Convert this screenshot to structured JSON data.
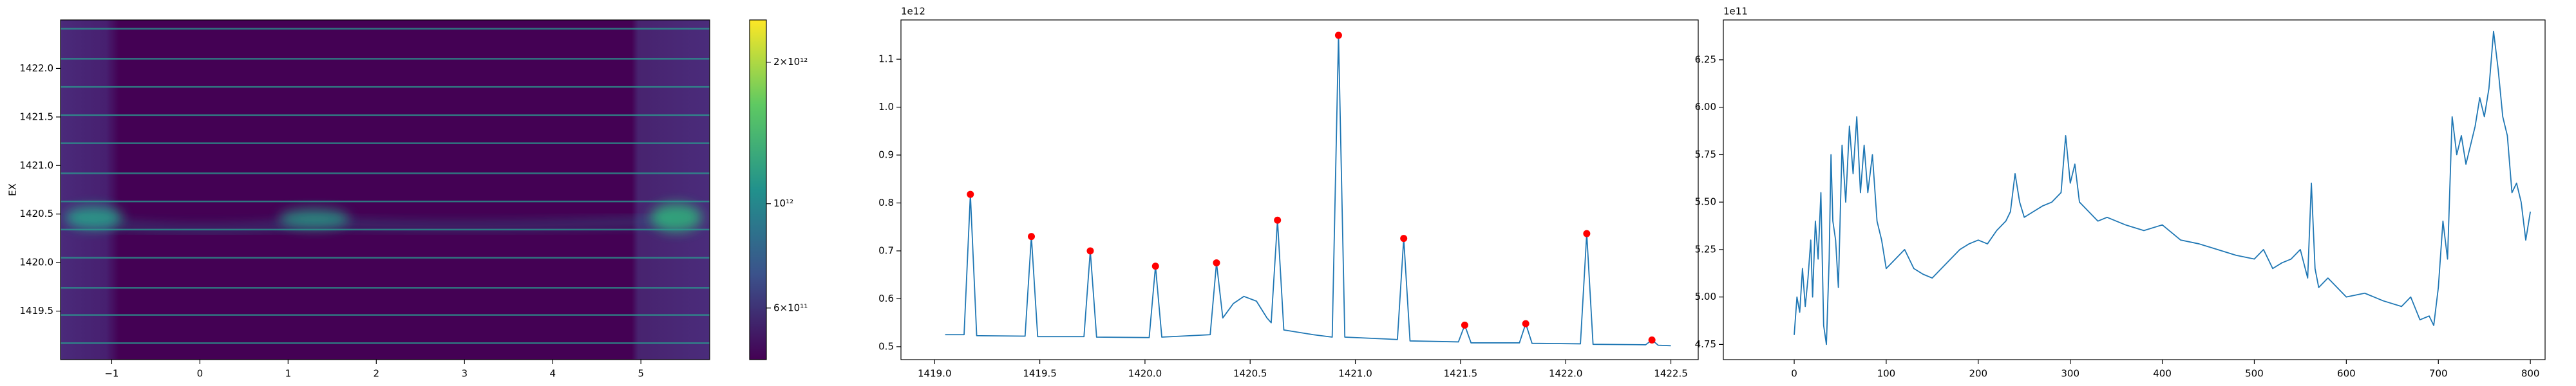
{
  "chart_data": [
    {
      "type": "heatmap",
      "ylabel": "EX",
      "xlim": [
        -1.58,
        5.78
      ],
      "ylim": [
        1419.0,
        1422.5
      ],
      "xticks": [
        {
          "value": -1,
          "label": "−1"
        },
        0,
        1,
        2,
        3,
        4,
        5
      ],
      "yticks": [
        {
          "value": 1419.5,
          "label": "1419.5"
        },
        {
          "value": 1420,
          "label": "1420.0"
        },
        1420.5,
        {
          "value": 1421,
          "label": "1421.0"
        },
        1421.5,
        {
          "value": 1422,
          "label": "1422.0"
        }
      ],
      "colorbar": {
        "scale": "log",
        "clim": [
          466000000000,
          2460000000000
        ],
        "ticks": [
          {
            "value": 2000000000000,
            "label": "2×10¹²"
          },
          {
            "value": 1000000000000,
            "label": "10¹²"
          },
          {
            "value": 600000000000,
            "label": "6×10¹¹"
          }
        ]
      }
    },
    {
      "type": "line",
      "color": "#1f77b4",
      "y_offset_label": "1e12",
      "xlim": [
        1418.84,
        1422.63
      ],
      "ylim": [
        0.473,
        1.182
      ],
      "xticks": [
        {
          "value": 1419,
          "label": "1419.0"
        },
        1419.5,
        {
          "value": 1420,
          "label": "1420.0"
        },
        1420.5,
        {
          "value": 1421,
          "label": "1421.0"
        },
        1421.5,
        {
          "value": 1422,
          "label": "1422.0"
        },
        1422.5
      ],
      "yticks": [
        0.5,
        0.6,
        0.7,
        0.8,
        0.9,
        {
          "value": 1,
          "label": "1.0"
        },
        1.1
      ],
      "x": [
        1419.05,
        1419.14,
        1419.17,
        1419.2,
        1419.43,
        1419.46,
        1419.49,
        1419.71,
        1419.74,
        1419.77,
        1420.02,
        1420.05,
        1420.08,
        1420.31,
        1420.34,
        1420.37,
        1420.42,
        1420.47,
        1420.53,
        1420.58,
        1420.6,
        1420.63,
        1420.66,
        1420.8,
        1420.89,
        1420.92,
        1420.95,
        1421.2,
        1421.23,
        1421.26,
        1421.49,
        1421.52,
        1421.55,
        1421.78,
        1421.81,
        1421.84,
        1422.07,
        1422.1,
        1422.13,
        1422.38,
        1422.41,
        1422.44,
        1422.5
      ],
      "values": [
        0.525,
        0.525,
        0.818,
        0.523,
        0.522,
        0.73,
        0.521,
        0.521,
        0.7,
        0.52,
        0.519,
        0.668,
        0.52,
        0.525,
        0.675,
        0.56,
        0.59,
        0.605,
        0.595,
        0.56,
        0.55,
        0.764,
        0.535,
        0.525,
        0.52,
        1.15,
        0.52,
        0.515,
        0.726,
        0.512,
        0.51,
        0.545,
        0.508,
        0.508,
        0.548,
        0.507,
        0.506,
        0.736,
        0.505,
        0.504,
        0.514,
        0.503,
        0.502
      ],
      "peaks": {
        "color": "#ff0000",
        "x": [
          1419.17,
          1419.46,
          1419.74,
          1420.05,
          1420.34,
          1420.63,
          1420.92,
          1421.23,
          1421.52,
          1421.81,
          1422.1,
          1422.41
        ],
        "values": [
          0.818,
          0.73,
          0.7,
          0.668,
          0.675,
          0.764,
          1.15,
          0.726,
          0.545,
          0.548,
          0.736,
          0.514
        ]
      }
    },
    {
      "type": "line",
      "color": "#1f77b4",
      "y_offset_label": "1e11",
      "xlim": [
        -77,
        816
      ],
      "ylim": [
        4.67,
        6.46
      ],
      "xticks": [
        0,
        100,
        200,
        300,
        400,
        500,
        600,
        700,
        800
      ],
      "yticks": [
        4.75,
        {
          "value": 5,
          "label": "5.00"
        },
        5.25,
        {
          "value": 5.5,
          "label": "5.50"
        },
        5.75,
        {
          "value": 6,
          "label": "6.00"
        },
        6.25
      ],
      "x": [
        0,
        3,
        6,
        9,
        12,
        15,
        18,
        20,
        23,
        26,
        29,
        32,
        35,
        38,
        40,
        42,
        45,
        48,
        52,
        56,
        60,
        64,
        68,
        72,
        76,
        80,
        85,
        90,
        95,
        100,
        110,
        120,
        130,
        140,
        150,
        160,
        170,
        180,
        190,
        200,
        210,
        220,
        230,
        235,
        240,
        245,
        250,
        260,
        270,
        280,
        290,
        295,
        300,
        305,
        310,
        320,
        330,
        340,
        350,
        360,
        380,
        400,
        420,
        440,
        460,
        480,
        500,
        510,
        520,
        530,
        540,
        550,
        558,
        562,
        566,
        570,
        580,
        600,
        620,
        640,
        660,
        670,
        680,
        690,
        695,
        700,
        705,
        710,
        715,
        720,
        725,
        730,
        740,
        745,
        750,
        755,
        760,
        765,
        770,
        775,
        780,
        785,
        790,
        795,
        800
      ],
      "values": [
        4.8,
        5.0,
        4.92,
        5.15,
        4.95,
        5.1,
        5.3,
        5.0,
        5.4,
        5.2,
        5.55,
        4.85,
        4.75,
        5.2,
        5.75,
        5.4,
        5.3,
        5.05,
        5.8,
        5.5,
        5.9,
        5.65,
        5.95,
        5.55,
        5.8,
        5.55,
        5.75,
        5.4,
        5.3,
        5.15,
        5.2,
        5.25,
        5.15,
        5.12,
        5.1,
        5.15,
        5.2,
        5.25,
        5.28,
        5.3,
        5.28,
        5.35,
        5.4,
        5.45,
        5.65,
        5.5,
        5.42,
        5.45,
        5.48,
        5.5,
        5.55,
        5.85,
        5.6,
        5.7,
        5.5,
        5.45,
        5.4,
        5.42,
        5.4,
        5.38,
        5.35,
        5.38,
        5.3,
        5.28,
        5.25,
        5.22,
        5.2,
        5.25,
        5.15,
        5.18,
        5.2,
        5.25,
        5.1,
        5.6,
        5.15,
        5.05,
        5.1,
        5.0,
        5.02,
        4.98,
        4.95,
        5.0,
        4.88,
        4.9,
        4.85,
        5.05,
        5.4,
        5.2,
        5.95,
        5.75,
        5.85,
        5.7,
        5.9,
        6.05,
        5.95,
        6.1,
        6.4,
        6.2,
        5.95,
        5.85,
        5.55,
        5.6,
        5.5,
        5.3,
        5.45
      ]
    }
  ]
}
